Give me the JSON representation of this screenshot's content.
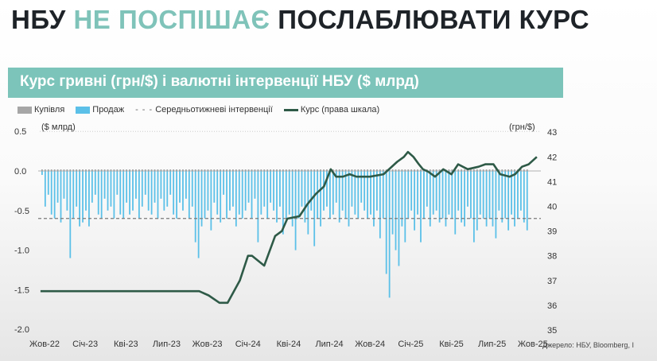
{
  "slide": {
    "title_part1": "НБУ",
    "title_accent": "НЕ ПОСПІШАЄ",
    "title_part2": "ПОСЛАБЛЮВАТИ КУРС",
    "source": "Джерело: НБУ, Bloomberg, I"
  },
  "colors": {
    "accent": "#7cc4ba",
    "sales": "#5bc0e8",
    "purchases": "#a6a6a6",
    "rate": "#2e5a47",
    "avg": "#7a7a7a"
  },
  "chart_data": {
    "type": "bar+line",
    "title": "Курс гривні (грн/$) і валютні інтервенції НБУ ($ млрд)",
    "legend": [
      "Купівля",
      "Продаж",
      "Середньотижневі інтервенції",
      "Курс (права шкала)"
    ],
    "legend_placement": "top-left",
    "ylabel_left": "($ млрд)",
    "ylabel_right": "(грн/$)",
    "ylim_left": [
      -2.0,
      0.5
    ],
    "ylim_right": [
      35,
      43
    ],
    "yticks_left": [
      "0.5",
      "0.0",
      "-0.5",
      "-1.0",
      "-1.5",
      "-2.0"
    ],
    "yticks_left_values": [
      0.5,
      0.0,
      -0.5,
      -1.0,
      -1.5,
      -2.0
    ],
    "yticks_right": [
      "43",
      "42",
      "41",
      "40",
      "39",
      "38",
      "37",
      "36",
      "35"
    ],
    "xticks": [
      "Жов-22",
      "Січ-23",
      "Кві-23",
      "Лип-23",
      "Жов-23",
      "Січ-24",
      "Кві-24",
      "Лип-24",
      "Жов-24",
      "Січ-25",
      "Кві-25",
      "Лип-25",
      "Жов-25"
    ],
    "x_months_span": 36,
    "avg_weekly_intervention": -0.6,
    "weekly_sales": [
      -0.05,
      -0.45,
      -0.3,
      -0.55,
      -0.6,
      -0.4,
      -0.65,
      -0.35,
      -0.5,
      -1.1,
      -0.6,
      -0.45,
      -0.7,
      -0.65,
      -0.5,
      -0.7,
      -0.4,
      -0.3,
      -0.55,
      -0.6,
      -0.35,
      -0.5,
      -0.45,
      -0.6,
      -0.3,
      -0.55,
      -0.6,
      -0.4,
      -0.55,
      -0.5,
      -0.35,
      -0.6,
      -0.45,
      -0.3,
      -0.5,
      -0.55,
      -0.4,
      -0.6,
      -0.35,
      -0.5,
      -0.45,
      -0.3,
      -0.55,
      -0.6,
      -0.4,
      -0.5,
      -0.35,
      -0.6,
      -0.45,
      -0.9,
      -1.1,
      -0.7,
      -0.6,
      -0.5,
      -0.75,
      -0.4,
      -0.55,
      -0.65,
      -0.3,
      -0.6,
      -0.5,
      -0.45,
      -0.7,
      -0.55,
      -0.6,
      -0.5,
      -0.4,
      -0.6,
      -0.35,
      -0.9,
      -0.55,
      -0.45,
      -0.6,
      -0.4,
      -0.5,
      -0.65,
      -0.45,
      -0.8,
      -0.6,
      -0.55,
      -0.7,
      -1.0,
      -0.6,
      -0.45,
      -0.65,
      -0.8,
      -0.5,
      -0.95,
      -0.6,
      -0.7,
      -0.5,
      -0.45,
      -0.6,
      -0.55,
      -0.4,
      -0.65,
      -0.5,
      -0.6,
      -0.7,
      -0.45,
      -0.55,
      -0.6,
      -0.4,
      -0.5,
      -0.6,
      -0.55,
      -0.7,
      -0.5,
      -0.85,
      -0.6,
      -1.3,
      -1.6,
      -0.8,
      -1.0,
      -1.2,
      -0.7,
      -0.9,
      -0.6,
      -0.5,
      -0.75,
      -0.55,
      -0.9,
      -0.6,
      -0.45,
      -0.7,
      -0.55,
      -0.5,
      -0.65,
      -0.6,
      -0.7,
      -0.55,
      -0.6,
      -0.8,
      -0.5,
      -0.65,
      -0.7,
      -0.45,
      -0.6,
      -0.9,
      -0.75,
      -0.55,
      -0.6,
      -0.7,
      -0.6,
      -0.7,
      -0.85,
      -0.5,
      -0.65,
      -0.6,
      -0.75,
      -0.55,
      -0.7,
      -0.6,
      -0.5,
      -0.65,
      -0.75
    ],
    "rate_series": {
      "month": [
        -0.3,
        11.4,
        12.1,
        12.9,
        13.5,
        14.4,
        15.0,
        15.3,
        16.2,
        17.0,
        17.5,
        17.9,
        18.8,
        19.4,
        20.0,
        20.6,
        21.1,
        21.5,
        22.0,
        22.5,
        23.0,
        24.0,
        25.0,
        26.0,
        26.5,
        26.8,
        27.2,
        27.6,
        27.9,
        28.3,
        28.8,
        29.4,
        30.0,
        30.5,
        31.2,
        32.0,
        32.5,
        33.1,
        33.6,
        34.3,
        34.7,
        35.2,
        35.7,
        36.3
      ],
      "uah_per_usd": [
        36.57,
        36.57,
        36.4,
        36.1,
        36.1,
        37.0,
        38.0,
        38.0,
        37.6,
        38.8,
        39.0,
        39.5,
        39.6,
        40.1,
        40.5,
        40.8,
        41.5,
        41.2,
        41.2,
        41.3,
        41.2,
        41.2,
        41.3,
        41.8,
        42.0,
        42.2,
        42.0,
        41.7,
        41.5,
        41.4,
        41.2,
        41.5,
        41.3,
        41.7,
        41.5,
        41.6,
        41.7,
        41.7,
        41.3,
        41.2,
        41.3,
        41.6,
        41.7,
        42.0
      ]
    }
  }
}
